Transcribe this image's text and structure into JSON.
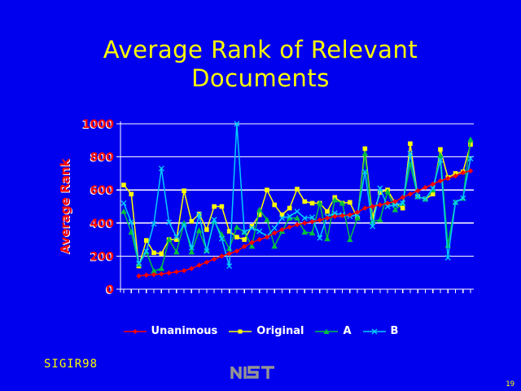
{
  "slide": {
    "title": "Average Rank of Relevant\nDocuments",
    "footer_left": "SIGIR98",
    "logo_text": "NIST",
    "page_number": "19"
  },
  "colors": {
    "background": "#0000ee",
    "title_text": "#ffff00",
    "axis_text": "#ff0000",
    "axis_lines": "#ffffff",
    "legend_text": "#ffffff",
    "footer_text": "#ffff00",
    "logo_gray": "#949494"
  },
  "chart_data": {
    "type": "line",
    "title": "",
    "xlabel": "",
    "ylabel": "Average Rank",
    "ylim": [
      0,
      1000
    ],
    "yticks": [
      0,
      200,
      400,
      600,
      800,
      1000
    ],
    "x_tick_count": 47,
    "x_labels_visible": false,
    "grid": true,
    "legend_position": "bottom",
    "series": [
      {
        "name": "Unanimous",
        "color": "#ff0000",
        "marker": "diamond",
        "values": [
          null,
          null,
          80,
          85,
          88,
          92,
          98,
          105,
          112,
          125,
          145,
          163,
          182,
          200,
          215,
          230,
          258,
          282,
          300,
          315,
          340,
          360,
          375,
          390,
          400,
          408,
          418,
          430,
          440,
          445,
          450,
          465,
          490,
          500,
          510,
          520,
          530,
          555,
          575,
          595,
          615,
          635,
          655,
          670,
          685,
          705,
          715
        ]
      },
      {
        "name": "Original",
        "color": "#ffff00",
        "marker": "square",
        "values": [
          630,
          575,
          140,
          295,
          220,
          215,
          300,
          300,
          595,
          410,
          455,
          360,
          500,
          500,
          350,
          315,
          300,
          380,
          450,
          600,
          510,
          450,
          490,
          605,
          530,
          520,
          520,
          470,
          555,
          520,
          525,
          430,
          850,
          435,
          585,
          600,
          520,
          490,
          880,
          560,
          545,
          575,
          845,
          675,
          700,
          710,
          875
        ]
      },
      {
        "name": "A",
        "color": "#00c040",
        "marker": "triangle",
        "values": [
          470,
          345,
          150,
          225,
          110,
          125,
          300,
          225,
          400,
          225,
          355,
          235,
          410,
          330,
          245,
          375,
          345,
          260,
          480,
          420,
          260,
          350,
          430,
          430,
          345,
          340,
          520,
          305,
          540,
          520,
          300,
          430,
          820,
          410,
          420,
          590,
          480,
          520,
          755,
          560,
          545,
          600,
          810,
          265,
          525,
          550,
          905
        ]
      },
      {
        "name": "B",
        "color": "#00ccff",
        "marker": "x",
        "values": [
          520,
          405,
          155,
          230,
          395,
          730,
          405,
          315,
          390,
          250,
          450,
          230,
          420,
          305,
          140,
          1000,
          345,
          370,
          350,
          320,
          370,
          430,
          440,
          470,
          430,
          435,
          310,
          440,
          460,
          450,
          440,
          450,
          710,
          380,
          610,
          500,
          510,
          520,
          820,
          560,
          545,
          610,
          780,
          190,
          525,
          550,
          790
        ]
      }
    ]
  }
}
